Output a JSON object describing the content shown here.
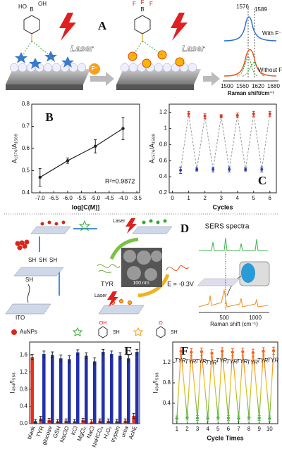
{
  "panel_a": {
    "label": "A",
    "laser": [
      "Laser",
      "Laser"
    ],
    "ion": "F⁻",
    "mol_left": [
      "HO",
      "B",
      "OH"
    ],
    "mol_right": [
      "F",
      "B",
      "F",
      "F"
    ],
    "peaks": [
      "1576",
      "1589"
    ],
    "with": "With F⁻",
    "without": "Without F⁻",
    "ticks": [
      "1500",
      "1560",
      "1620",
      "1680"
    ],
    "xlabel": "Raman shift/cm⁻¹"
  },
  "panel_d": {
    "label": "D",
    "title": "SERS spectra",
    "laser": [
      "Laser",
      "Laser"
    ],
    "protein": "TYR",
    "scale": "100 nm",
    "potential": "E = -0.3V",
    "electrode": "ITO",
    "thiols": [
      "SH",
      "SH",
      "SH",
      "SH"
    ],
    "ticks": [
      "500",
      "1000"
    ],
    "xlabel": "Raman shift (cm⁻¹)"
  },
  "legend": {
    "particles": "AuNPs",
    "probe_a": [
      "OH",
      "SH"
    ],
    "probe_b": [
      "O",
      "SH"
    ]
  },
  "chart_data": [
    {
      "type": "line",
      "label": "B",
      "xlabel": "log[C(M)]",
      "ylabel": "A₁₅₇₆/A₁₅₈₉",
      "annotation": "R²=0.9872",
      "x": [
        -7,
        -6,
        -5,
        -4
      ],
      "values": [
        0.47,
        0.545,
        0.61,
        0.69
      ],
      "errors": [
        0.04,
        0.012,
        0.03,
        0.05
      ],
      "color": "#222222",
      "xlim": [
        -7.3,
        -3.4
      ],
      "ylim": [
        0.4,
        0.8
      ],
      "xticks": [
        {
          "value": -7,
          "label": "-7.0"
        },
        -6.5,
        {
          "value": -6,
          "label": "-6.0"
        },
        -5.5,
        {
          "value": -5,
          "label": "-5.0"
        },
        -4.5,
        {
          "value": -4,
          "label": "-4.0"
        },
        -3.5
      ],
      "yticks": [
        0.4,
        0.5,
        0.6,
        0.7,
        0.8
      ]
    },
    {
      "type": "scatter",
      "label": "C",
      "xlabel": "Cycles",
      "ylabel": "A₁₅₇₆/A₁₅₈₉",
      "x": [
        0.5,
        1,
        1.5,
        2,
        2.5,
        3,
        3.5,
        4,
        4.5,
        5,
        5.5,
        6
      ],
      "values": [
        0.48,
        1.18,
        0.49,
        1.15,
        0.49,
        1.15,
        0.49,
        1.16,
        0.49,
        1.18,
        0.49,
        1.18
      ],
      "errors": [
        0.04,
        0.03,
        0.02,
        0.03,
        0.03,
        0.02,
        0.03,
        0.03,
        0.02,
        0.03,
        0.03,
        0.03
      ],
      "colors": [
        "#2b3fb8",
        "#d43a2a"
      ],
      "line_color": "#999999",
      "xlim": [
        -0.2,
        6.4
      ],
      "ylim": [
        0.2,
        1.3
      ],
      "xticks": [
        0,
        1,
        2,
        3,
        4,
        5,
        6
      ],
      "yticks": [
        0.2,
        0.4,
        0.6,
        0.8,
        1,
        1.2
      ]
    },
    {
      "type": "bar",
      "label": "E",
      "ylabel": "I₄₈₄/I₅₈₈",
      "categories": [
        "blank",
        "TYR",
        "glucose",
        "GSH",
        "NaClO",
        "KCl",
        "MgCl₂",
        "NaCl",
        "NaHCO₃",
        "H₂O₂",
        "trypsin",
        "urea",
        "AchE"
      ],
      "series": [
        {
          "color": "#e8301c",
          "values": [
            1.55,
            0.12,
            0.08,
            0.06,
            0.07,
            0.06,
            0.08,
            0.05,
            0.07,
            0.07,
            0.06,
            0.07,
            0.18
          ],
          "errors": [
            0.06,
            0.05,
            0.04,
            0.04,
            0.04,
            0.04,
            0.04,
            0.04,
            0.04,
            0.04,
            0.04,
            0.04,
            0.06
          ]
        },
        {
          "color": "#2231a8",
          "values": [
            0.06,
            1.62,
            1.6,
            1.52,
            1.5,
            1.66,
            1.58,
            1.45,
            1.67,
            1.62,
            1.58,
            1.52,
            1.67
          ],
          "errors": [
            0.04,
            0.07,
            0.07,
            0.08,
            0.08,
            0.06,
            0.07,
            0.08,
            0.06,
            0.07,
            0.07,
            0.08,
            0.06
          ]
        }
      ],
      "ylim": [
        0,
        1.9
      ],
      "yticks": [
        {
          "value": 0,
          "label": "0.0"
        },
        0.4,
        0.8,
        1.2,
        1.6
      ]
    },
    {
      "type": "line",
      "label": "F",
      "xlabel": "Cycle Times",
      "ylabel": "I₄₈₄/I₅₈₈",
      "x": [
        1,
        1.4,
        2,
        2.4,
        3,
        3.4,
        4,
        4.4,
        5,
        5.4,
        6,
        6.4,
        7,
        7.4,
        8,
        8.4,
        9,
        9.4,
        10,
        10.4
      ],
      "values": [
        0.1,
        1.42,
        0.12,
        1.4,
        0.11,
        1.41,
        0.1,
        1.38,
        0.12,
        1.42,
        0.11,
        1.4,
        0.1,
        1.41,
        0.12,
        1.39,
        0.11,
        1.42,
        0.1,
        1.43
      ],
      "errors": [
        0.05,
        0.07,
        0.05,
        0.07,
        0.05,
        0.07,
        0.05,
        0.07,
        0.05,
        0.07,
        0.05,
        0.07,
        0.05,
        0.07,
        0.05,
        0.07,
        0.05,
        0.07,
        0.05,
        0.07
      ],
      "gradient": [
        "#f04a24",
        "#f2c21a",
        "#3cb44a"
      ],
      "annotations": [
        "TYR",
        "TYR",
        "TYR",
        "TYR",
        "TYR",
        "TYR",
        "TYR",
        "TYR",
        "TYR",
        "TYR"
      ],
      "xlim": [
        0.6,
        10.8
      ],
      "ylim": [
        0,
        1.6
      ],
      "xticks": [
        1,
        2,
        3,
        4,
        5,
        6,
        7,
        8,
        9,
        10
      ],
      "yticks": [
        0.4,
        0.8,
        1.2
      ]
    }
  ]
}
